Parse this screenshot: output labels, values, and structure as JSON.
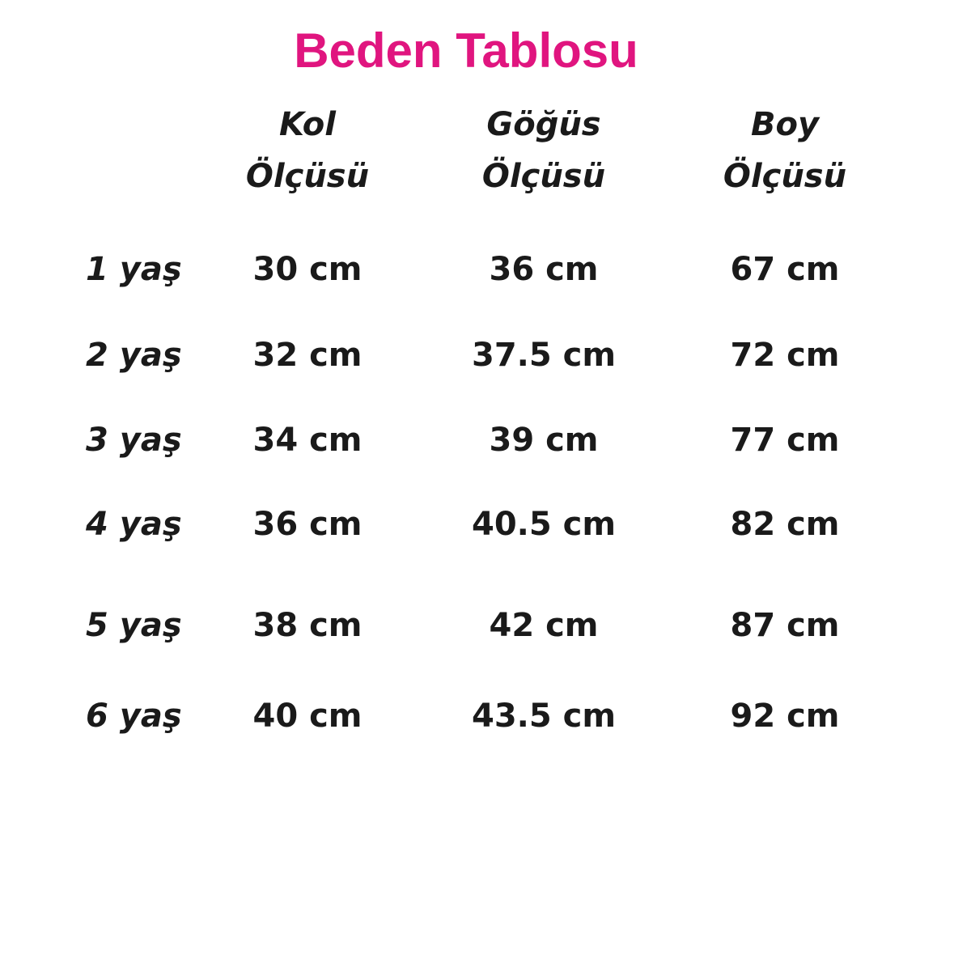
{
  "title": "Beden Tablosu",
  "title_color": "#e0157f",
  "columns": [
    {
      "line1": "Kol",
      "line2": "Ölçüsü"
    },
    {
      "line1": "Göğüs",
      "line2": "Ölçüsü"
    },
    {
      "line1": "Boy",
      "line2": "Ölçüsü"
    }
  ],
  "rows": [
    {
      "label": "1 yaş",
      "values": [
        "30 cm",
        "36 cm",
        "67 cm"
      ]
    },
    {
      "label": "2 yaş",
      "values": [
        "32 cm",
        "37.5 cm",
        "72 cm"
      ]
    },
    {
      "label": "3 yaş",
      "values": [
        "34 cm",
        "39 cm",
        "77 cm"
      ]
    },
    {
      "label": "4 yaş",
      "values": [
        "36 cm",
        "40.5 cm",
        "82 cm"
      ]
    },
    {
      "label": "5 yaş",
      "values": [
        "38 cm",
        "42 cm",
        "87 cm"
      ]
    },
    {
      "label": "6 yaş",
      "values": [
        "40 cm",
        "43.5 cm",
        "92 cm"
      ]
    }
  ]
}
